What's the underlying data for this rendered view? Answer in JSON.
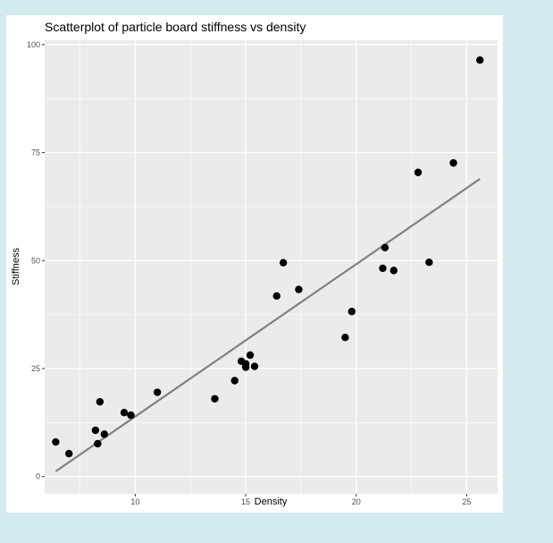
{
  "chart_data": {
    "type": "scatter",
    "title": "Scatterplot of particle board stiffness vs density",
    "xlabel": "Density",
    "ylabel": "Stiffness",
    "xlim": [
      5.9,
      26.4
    ],
    "ylim": [
      -4,
      101
    ],
    "xticks": [
      "10",
      "15",
      "20",
      "25"
    ],
    "xtick_values": [
      10,
      15,
      20,
      25
    ],
    "yticks": [
      "0",
      "25",
      "50",
      "75",
      "100"
    ],
    "ytick_values": [
      0,
      25,
      50,
      75,
      100
    ],
    "grid": true,
    "panel_color": "#ebebeb",
    "grid_color": "#ffffff",
    "point_color": "#000000",
    "line_color": "#808080",
    "points": [
      {
        "x": 6.4,
        "y": 8.0
      },
      {
        "x": 7.0,
        "y": 5.3
      },
      {
        "x": 8.2,
        "y": 10.7
      },
      {
        "x": 8.3,
        "y": 7.6
      },
      {
        "x": 8.4,
        "y": 17.3
      },
      {
        "x": 8.6,
        "y": 9.8
      },
      {
        "x": 9.5,
        "y": 14.8
      },
      {
        "x": 9.8,
        "y": 14.2
      },
      {
        "x": 11.0,
        "y": 19.5
      },
      {
        "x": 13.6,
        "y": 18.0
      },
      {
        "x": 14.5,
        "y": 22.2
      },
      {
        "x": 14.8,
        "y": 26.7
      },
      {
        "x": 15.0,
        "y": 25.3
      },
      {
        "x": 15.0,
        "y": 26.1
      },
      {
        "x": 15.2,
        "y": 28.1
      },
      {
        "x": 15.4,
        "y": 25.5
      },
      {
        "x": 16.4,
        "y": 41.8
      },
      {
        "x": 16.7,
        "y": 49.5
      },
      {
        "x": 17.4,
        "y": 43.3
      },
      {
        "x": 19.5,
        "y": 32.2
      },
      {
        "x": 19.8,
        "y": 38.2
      },
      {
        "x": 21.2,
        "y": 48.2
      },
      {
        "x": 21.3,
        "y": 53.0
      },
      {
        "x": 21.7,
        "y": 47.7
      },
      {
        "x": 22.8,
        "y": 70.4
      },
      {
        "x": 23.3,
        "y": 49.6
      },
      {
        "x": 24.4,
        "y": 72.6
      },
      {
        "x": 25.6,
        "y": 96.4
      }
    ],
    "fit_line": {
      "x": [
        6.4,
        25.6
      ],
      "y": [
        1.2,
        68.9
      ]
    }
  }
}
